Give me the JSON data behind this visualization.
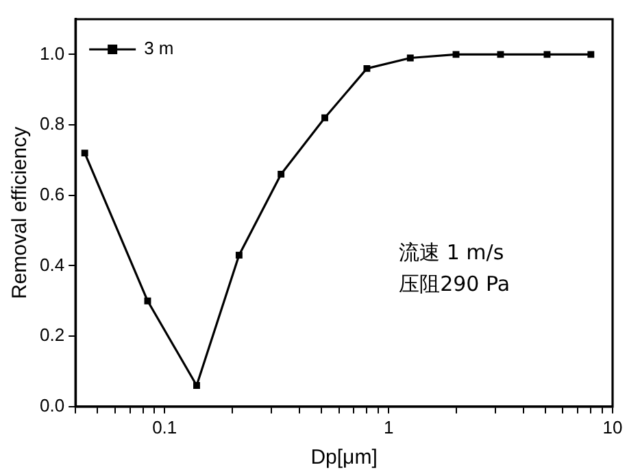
{
  "chart_data": {
    "type": "line",
    "xlabel": "Dp[μm]",
    "ylabel": "Removal efficiency",
    "x": [
      0.044,
      0.084,
      0.139,
      0.215,
      0.331,
      0.519,
      0.8,
      1.25,
      2.0,
      3.16,
      5.1,
      8.0
    ],
    "series": [
      {
        "name": "3 m",
        "color": "#000000",
        "values": [
          0.72,
          0.3,
          0.06,
          0.43,
          0.66,
          0.82,
          0.96,
          0.99,
          1.0,
          1.0,
          1.0,
          1.0
        ]
      }
    ],
    "log": "x",
    "xlim": [
      0.04,
      10
    ],
    "xticks": [
      {
        "value": 0.04,
        "label": null
      },
      {
        "value": 0.05,
        "label": null
      },
      {
        "value": 0.06,
        "label": null
      },
      {
        "value": 0.07,
        "label": null
      },
      {
        "value": 0.08,
        "label": null
      },
      {
        "value": 0.09,
        "label": null
      },
      0.1,
      {
        "value": 0.2,
        "label": null
      },
      {
        "value": 0.3,
        "label": null
      },
      {
        "value": 0.4,
        "label": null
      },
      {
        "value": 0.5,
        "label": null
      },
      {
        "value": 0.6,
        "label": null
      },
      {
        "value": 0.7,
        "label": null
      },
      {
        "value": 0.8,
        "label": null
      },
      {
        "value": 0.9,
        "label": null
      },
      1,
      {
        "value": 2,
        "label": null
      },
      {
        "value": 3,
        "label": null
      },
      {
        "value": 4,
        "label": null
      },
      {
        "value": 5,
        "label": null
      },
      {
        "value": 6,
        "label": null
      },
      {
        "value": 7,
        "label": null
      },
      {
        "value": 8,
        "label": null
      },
      {
        "value": 9,
        "label": null
      },
      10
    ],
    "ylim": [
      0,
      1.1
    ],
    "yticks": [
      {
        "value": 0,
        "label": "0.0"
      },
      {
        "value": 0.2,
        "label": "0.2"
      },
      {
        "value": 0.4,
        "label": "0.4"
      },
      {
        "value": 0.6,
        "label": "0.6"
      },
      {
        "value": 0.8,
        "label": "0.8"
      },
      {
        "value": 1.0,
        "label": "1.0"
      }
    ],
    "annotations": [
      "流速 1 m/s",
      "压阻290 Pa"
    ],
    "legend": "top left",
    "marker": "square",
    "line_style": "solid",
    "grid": false
  }
}
